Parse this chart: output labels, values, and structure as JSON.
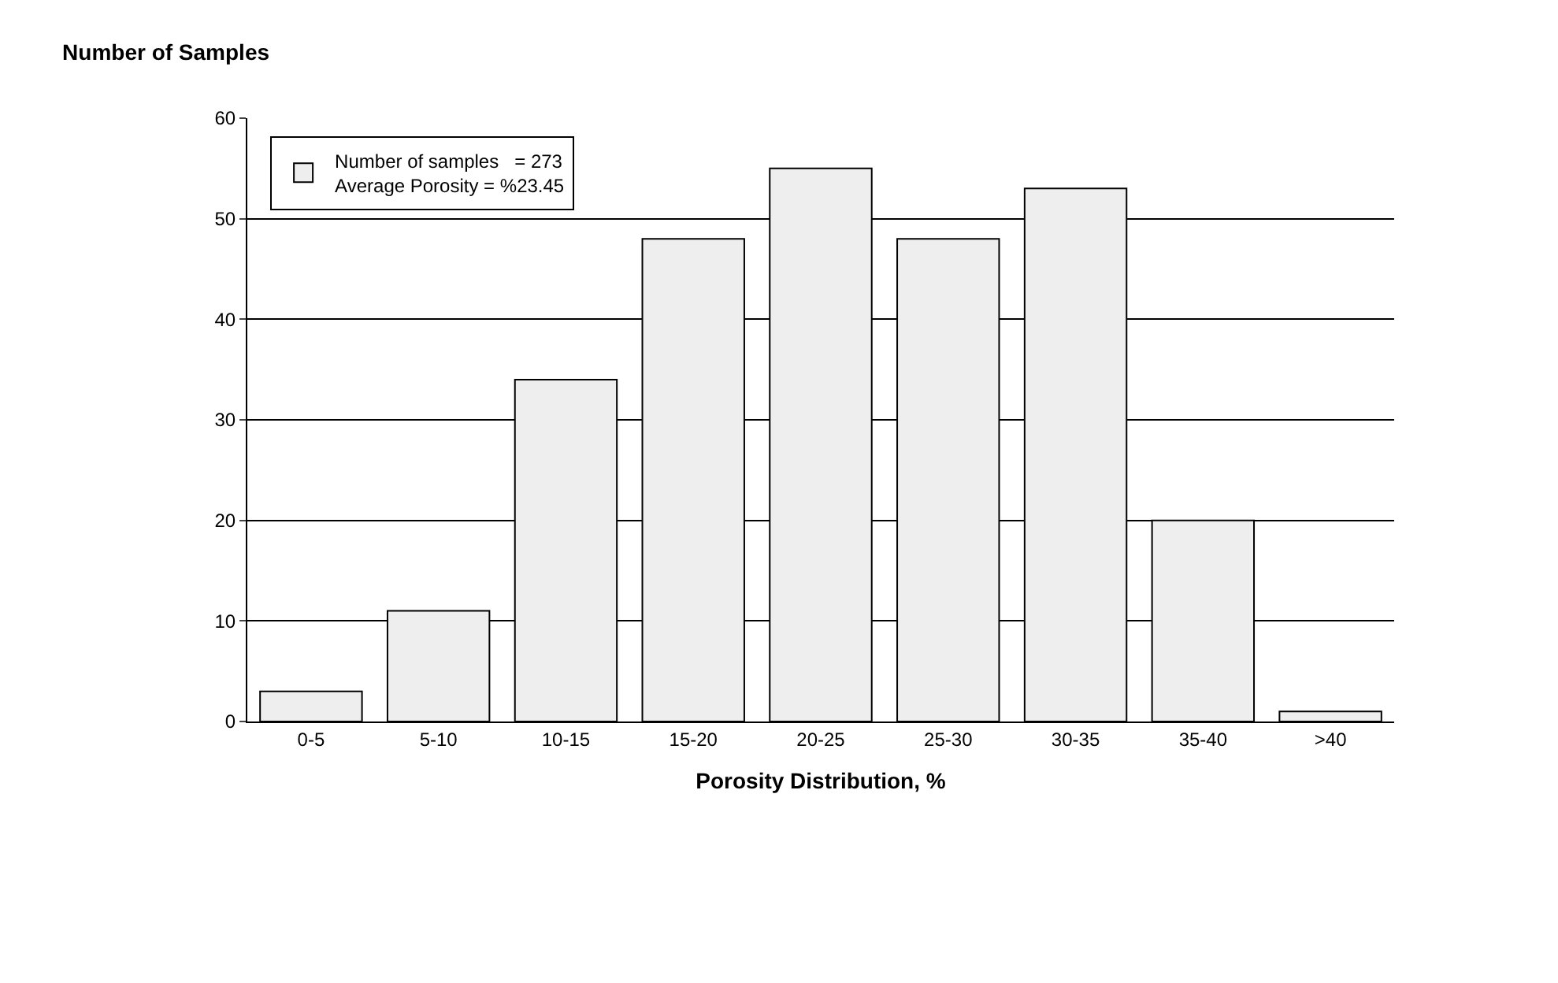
{
  "chart_data": {
    "type": "bar",
    "title": "Number of Samples",
    "xlabel": "Porosity Distribution, %",
    "categories": [
      "0-5",
      "5-10",
      "10-15",
      "15-20",
      "20-25",
      "25-30",
      "30-35",
      "35-40",
      ">40"
    ],
    "series": [
      {
        "name": "Number of samples   = 273",
        "color": "#eeeeee",
        "values": [
          3,
          11,
          34,
          48,
          55,
          48,
          53,
          20,
          1
        ]
      }
    ],
    "annotations": [
      "Average Porosity = %23.45"
    ],
    "ylim": [
      0,
      60
    ],
    "yticks": [
      0,
      10,
      20,
      30,
      40,
      50,
      60
    ],
    "grid": "y",
    "legend": "top left"
  }
}
